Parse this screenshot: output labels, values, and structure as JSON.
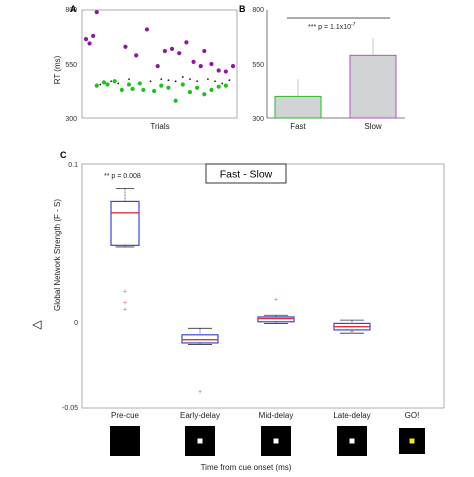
{
  "chart_data": [
    {
      "panel": "A",
      "type": "scatter",
      "xlabel": "Trials",
      "ylabel": "RT (ms)",
      "ylim": [
        300,
        800
      ],
      "yticks": [
        "800",
        "550",
        "300"
      ],
      "series": [
        {
          "color": "#8b1a9a",
          "x": [
            1,
            2,
            3,
            4,
            12,
            15,
            18,
            21,
            23,
            25,
            27,
            29,
            31,
            33,
            34,
            36,
            38,
            40,
            42
          ],
          "y": [
            665,
            645,
            680,
            790,
            630,
            590,
            710,
            540,
            610,
            620,
            600,
            650,
            560,
            540,
            610,
            550,
            520,
            515,
            540
          ]
        },
        {
          "color": "#1a1a1a",
          "x": [
            5,
            8,
            10,
            13,
            16,
            19,
            22,
            24,
            26,
            28,
            30,
            32,
            35,
            37,
            39,
            41
          ],
          "y": [
            455,
            470,
            460,
            480,
            465,
            470,
            480,
            475,
            470,
            490,
            480,
            470,
            480,
            470,
            460,
            475
          ]
        },
        {
          "color": "#1fc01f",
          "x": [
            4,
            6,
            7,
            9,
            11,
            13,
            14,
            16,
            17,
            20,
            22,
            24,
            26,
            28,
            30,
            32,
            34,
            36,
            38,
            40
          ],
          "y": [
            450,
            465,
            455,
            470,
            430,
            455,
            435,
            460,
            430,
            425,
            450,
            440,
            380,
            455,
            420,
            440,
            410,
            430,
            445,
            450
          ]
        }
      ]
    },
    {
      "panel": "B",
      "type": "bar",
      "categories": [
        "Fast",
        "Slow"
      ],
      "values": [
        400,
        590
      ],
      "errors": [
        80,
        80
      ],
      "ylim": [
        300,
        800
      ],
      "yticks": [
        "800",
        "550",
        "300"
      ],
      "bar_fill": "#d1d3d4",
      "bar_edges": [
        "#2db52d",
        "#b64fc8"
      ],
      "annotation": "*** p = 1.1x10",
      "annotation_exp": "-7"
    },
    {
      "panel": "C",
      "type": "box",
      "title": "Fast - Slow",
      "ylabel": "Global Network Strength (F - S)",
      "ylabel_prefix": "△",
      "xlabel": "Time from cue onset (ms)",
      "ylim": [
        -0.05,
        0.1
      ],
      "yticks": [
        "0.1",
        "0",
        "-0.05"
      ],
      "categories": [
        "Pre-cue",
        "Early-delay",
        "Mid-delay",
        "Late-delay",
        "GO!"
      ],
      "boxes": [
        {
          "q1": 0.05,
          "median": 0.07,
          "q3": 0.077,
          "wlow": 0.049,
          "whigh": 0.085,
          "outliers": [
            0.022,
            0.015,
            0.011
          ]
        },
        {
          "q1": -0.01,
          "median": -0.008,
          "q3": -0.005,
          "wlow": -0.011,
          "whigh": -0.001,
          "outliers": [
            -0.04
          ]
        },
        {
          "q1": 0.003,
          "median": 0.005,
          "q3": 0.006,
          "wlow": 0.002,
          "whigh": 0.007,
          "outliers": [
            0.017
          ]
        },
        {
          "q1": -0.002,
          "median": 0.0,
          "q3": 0.002,
          "wlow": -0.004,
          "whigh": 0.004,
          "outliers": [
            -0.003
          ]
        }
      ],
      "annotation": "** p = 0.008",
      "box_edge": "#3a49c6",
      "median_color": "#e0303a",
      "outlier_color": "#e85a6a",
      "stimuli": [
        {
          "dot": false,
          "dot_color": "#ffffff"
        },
        {
          "dot": true,
          "dot_color": "#ffffff"
        },
        {
          "dot": true,
          "dot_color": "#ffffff"
        },
        {
          "dot": true,
          "dot_color": "#ffffff"
        },
        {
          "dot": true,
          "dot_color": "#f3e61a"
        }
      ]
    }
  ]
}
